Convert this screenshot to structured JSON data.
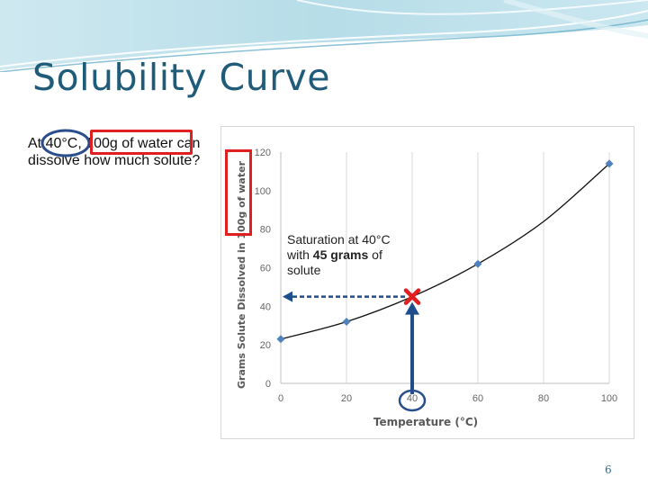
{
  "slide": {
    "title": "Solubility Curve",
    "question": {
      "part1": "At ",
      "temp_highlight": "40°C",
      "part2": ", ",
      "water_highlight": "100g of water",
      "part3": " can dissolve how much solute?"
    },
    "callout": {
      "line1": "Saturation at 40°C",
      "prefix": "with ",
      "bold": "45 grams",
      "suffix": " of",
      "line3": "solute"
    },
    "page_number": "6"
  },
  "colors": {
    "title": "#1f5c7a",
    "highlight_circle": "#2a4d8c",
    "highlight_box": "#e02020",
    "marker_x": "#e02020",
    "arrow": "#1f4e8c",
    "point": "#4f81bd",
    "curve": "#111111"
  },
  "chart_data": {
    "type": "scatter",
    "title": "",
    "xlabel": "Temperature (°C)",
    "ylabel": "Grams Solute Dissolved in 100g of water",
    "xlim": [
      0,
      100
    ],
    "ylim": [
      0,
      120
    ],
    "xticks": [
      0,
      20,
      40,
      60,
      80,
      100
    ],
    "yticks": [
      0,
      20,
      40,
      60,
      80,
      100,
      120
    ],
    "grid": "vertical",
    "legend": "none",
    "series": [
      {
        "x": [
          0,
          20,
          60,
          100
        ],
        "y": [
          23,
          32,
          62,
          114
        ]
      }
    ],
    "curve": {
      "x": [
        0,
        20,
        40,
        60,
        80,
        100
      ],
      "y": [
        23,
        32,
        45,
        62,
        84,
        114
      ]
    },
    "annotation": {
      "x": 40,
      "y": 45,
      "marker": "x"
    }
  }
}
